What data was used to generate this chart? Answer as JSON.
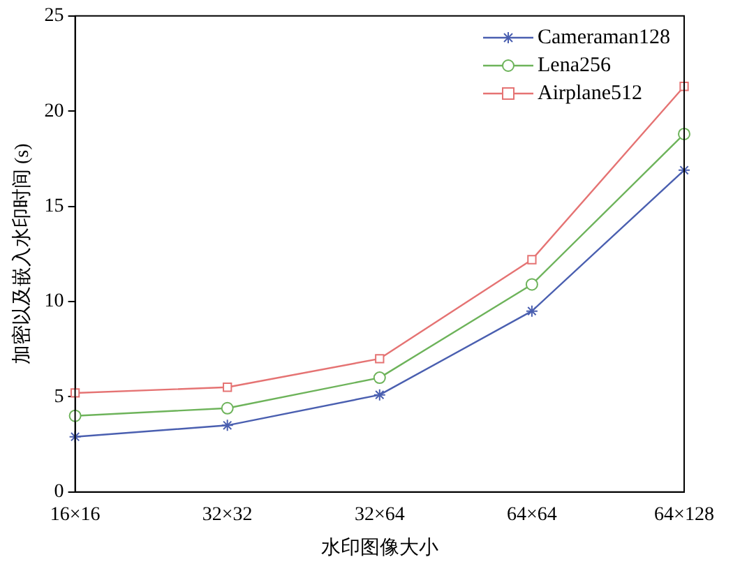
{
  "chart_data": {
    "type": "line",
    "xlabel": "水印图像大小",
    "ylabel": "加密以及嵌入水印时间 (s)",
    "categories": [
      "16×16",
      "32×32",
      "32×64",
      "64×64",
      "64×128"
    ],
    "ylim": [
      0,
      25
    ],
    "yticks": [
      0,
      5,
      10,
      15,
      20,
      25
    ],
    "grid": false,
    "legend": "top right",
    "line_style": "solid",
    "series": [
      {
        "name": "Cameraman128",
        "color": "#4a5fb0",
        "marker": "cross",
        "values": [
          2.9,
          3.5,
          5.1,
          9.5,
          16.9
        ]
      },
      {
        "name": "Lena256",
        "color": "#6db35a",
        "marker": "circle",
        "values": [
          4.0,
          4.4,
          6.0,
          10.9,
          18.8
        ]
      },
      {
        "name": "Airplane512",
        "color": "#e57373",
        "marker": "square",
        "values": [
          5.2,
          5.5,
          7.0,
          12.2,
          21.3
        ]
      }
    ]
  }
}
